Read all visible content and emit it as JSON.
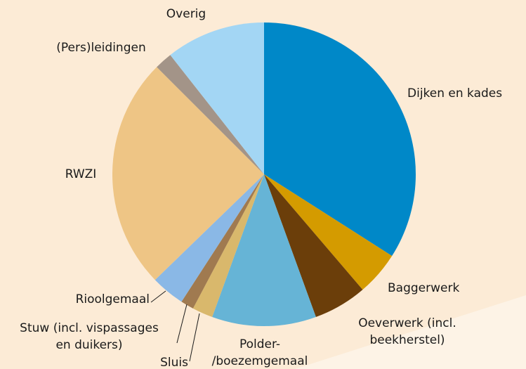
{
  "chart_data": {
    "type": "pie",
    "categories": [
      "Dijken en kades",
      "Baggerwerk",
      "Oeverwerk (incl. beekherstel)",
      "Polder-/boezemgemaal",
      "Sluis",
      "Stuw (incl. vispassages en duikers)",
      "Rioolgemaal",
      "RWZI",
      "(Pers)leidingen",
      "Overig"
    ],
    "values": [
      34,
      4.7,
      5.7,
      11.1,
      2.2,
      1.4,
      3.6,
      24.7,
      1.9,
      10.6
    ],
    "colors": [
      "#0088c8",
      "#d49b00",
      "#6b3e0a",
      "#66b4d6",
      "#d9b86c",
      "#a07a50",
      "#8ab8e6",
      "#eec585",
      "#a39488",
      "#a3d6f4"
    ]
  }
}
